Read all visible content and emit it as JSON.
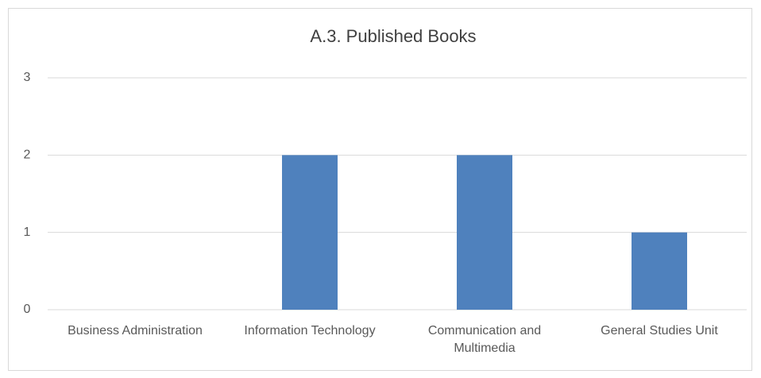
{
  "chart_data": {
    "type": "bar",
    "title": "A.3. Published Books",
    "categories": [
      "Business Administration",
      "Information Technology",
      "Communication and Multimedia",
      "General Studies Unit"
    ],
    "values": [
      0,
      2,
      2,
      1
    ],
    "color": "#4f81bd",
    "ylim": [
      0,
      3
    ],
    "yticks": [
      0,
      1,
      2,
      3
    ],
    "grid": true
  }
}
